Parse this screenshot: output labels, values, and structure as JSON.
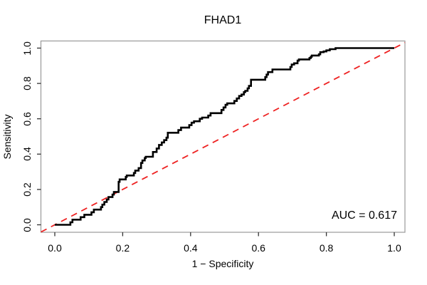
{
  "title": "FHAD1",
  "chart_data": {
    "type": "line",
    "subtype": "roc-curve",
    "title": "FHAD1",
    "xlabel": "1 − Specificity",
    "ylabel": "Sensitivity",
    "xlim": [
      0,
      1
    ],
    "ylim": [
      0,
      1
    ],
    "x_ticks": [
      "0.0",
      "0.2",
      "0.4",
      "0.6",
      "0.8",
      "1.0"
    ],
    "y_ticks": [
      "0.0",
      "0.2",
      "0.4",
      "0.6",
      "0.8",
      "1.0"
    ],
    "grid": false,
    "legend": "none",
    "annotation": "AUC = 0.617",
    "auc": 0.617,
    "series": [
      {
        "name": "ROC curve",
        "style": "step-solid",
        "color": "#000000",
        "line_width": 2.6,
        "points": [
          [
            0.0,
            0.0
          ],
          [
            0.046,
            0.014
          ],
          [
            0.052,
            0.029
          ],
          [
            0.076,
            0.043
          ],
          [
            0.087,
            0.057
          ],
          [
            0.108,
            0.071
          ],
          [
            0.115,
            0.086
          ],
          [
            0.136,
            0.1
          ],
          [
            0.14,
            0.114
          ],
          [
            0.146,
            0.129
          ],
          [
            0.153,
            0.143
          ],
          [
            0.158,
            0.157
          ],
          [
            0.17,
            0.171
          ],
          [
            0.174,
            0.186
          ],
          [
            0.188,
            0.243
          ],
          [
            0.191,
            0.257
          ],
          [
            0.209,
            0.271
          ],
          [
            0.212,
            0.279
          ],
          [
            0.233,
            0.293
          ],
          [
            0.237,
            0.307
          ],
          [
            0.247,
            0.321
          ],
          [
            0.254,
            0.35
          ],
          [
            0.258,
            0.364
          ],
          [
            0.265,
            0.378
          ],
          [
            0.268,
            0.385
          ],
          [
            0.289,
            0.412
          ],
          [
            0.3,
            0.432
          ],
          [
            0.307,
            0.452
          ],
          [
            0.315,
            0.466
          ],
          [
            0.322,
            0.479
          ],
          [
            0.329,
            0.493
          ],
          [
            0.333,
            0.521
          ],
          [
            0.364,
            0.536
          ],
          [
            0.372,
            0.55
          ],
          [
            0.396,
            0.564
          ],
          [
            0.403,
            0.578
          ],
          [
            0.41,
            0.586
          ],
          [
            0.427,
            0.6
          ],
          [
            0.434,
            0.607
          ],
          [
            0.452,
            0.618
          ],
          [
            0.459,
            0.632
          ],
          [
            0.491,
            0.65
          ],
          [
            0.497,
            0.664
          ],
          [
            0.503,
            0.679
          ],
          [
            0.508,
            0.687
          ],
          [
            0.529,
            0.701
          ],
          [
            0.536,
            0.715
          ],
          [
            0.543,
            0.729
          ],
          [
            0.55,
            0.737
          ],
          [
            0.557,
            0.751
          ],
          [
            0.561,
            0.758
          ],
          [
            0.568,
            0.772
          ],
          [
            0.572,
            0.786
          ],
          [
            0.578,
            0.821
          ],
          [
            0.62,
            0.836
          ],
          [
            0.624,
            0.85
          ],
          [
            0.628,
            0.864
          ],
          [
            0.641,
            0.879
          ],
          [
            0.694,
            0.893
          ],
          [
            0.698,
            0.907
          ],
          [
            0.705,
            0.914
          ],
          [
            0.715,
            0.929
          ],
          [
            0.719,
            0.936
          ],
          [
            0.75,
            0.944
          ],
          [
            0.754,
            0.951
          ],
          [
            0.757,
            0.958
          ],
          [
            0.778,
            0.965
          ],
          [
            0.782,
            0.977
          ],
          [
            0.792,
            0.981
          ],
          [
            0.8,
            0.987
          ],
          [
            0.81,
            0.994
          ],
          [
            0.827,
            1.0
          ],
          [
            1.0,
            1.0
          ]
        ]
      },
      {
        "name": "chance diagonal",
        "style": "dashed",
        "color": "#ee2222",
        "line_width": 1.8,
        "points": [
          [
            0,
            0
          ],
          [
            1,
            1
          ]
        ]
      }
    ]
  },
  "colors": {
    "background": "#ffffff",
    "box": "#999999",
    "axis": "#333333",
    "text": "#000000"
  }
}
